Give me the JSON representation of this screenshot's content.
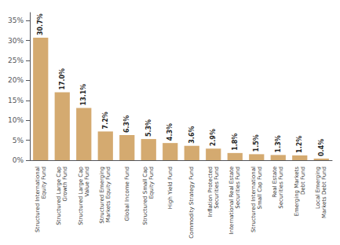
{
  "chart_data": {
    "type": "bar",
    "categories": [
      "Structured International\nEquity Fund",
      "Structured Large Cap\nGrowth Fund",
      "Structured Large Cap\nValue Fund",
      "Structured Emerging\nMarkets Equity Fund",
      "Global Income Fund",
      "Structured Small Cap\nEquity Fund",
      "High Yield Fund",
      "Commodity Strategy Fund",
      "Inflation Protected\nSecurities Fund",
      "International Real Estate\nSecurities Fund",
      "Structured International\nSmall Cap Fund",
      "Real Estate\nSecurities Fund",
      "Emerging Markets\nDebt Fund",
      "Local Emerging\nMarkets Debt Fund"
    ],
    "values": [
      30.7,
      17.0,
      13.1,
      7.2,
      6.3,
      5.3,
      4.3,
      3.6,
      2.9,
      1.8,
      1.5,
      1.3,
      1.2,
      0.4
    ],
    "value_labels": [
      "30.7%",
      "17.0%",
      "13.1%",
      "7.2%",
      "6.3%",
      "5.3%",
      "4.3%",
      "3.6%",
      "2.9%",
      "1.8%",
      "1.5%",
      "1.3%",
      "1.2%",
      "0.4%"
    ],
    "data_labels": true,
    "color": "#D4AA70",
    "ylim": [
      0,
      37
    ],
    "yticks": [
      {
        "value": 0,
        "label": "0%"
      },
      {
        "value": 5,
        "label": "5%"
      },
      {
        "value": 10,
        "label": "10%"
      },
      {
        "value": 15,
        "label": "15%"
      },
      {
        "value": 20,
        "label": "20%"
      },
      {
        "value": 25,
        "label": "25%"
      },
      {
        "value": 30,
        "label": "30%"
      },
      {
        "value": 35,
        "label": "35%"
      }
    ],
    "grid": false
  }
}
